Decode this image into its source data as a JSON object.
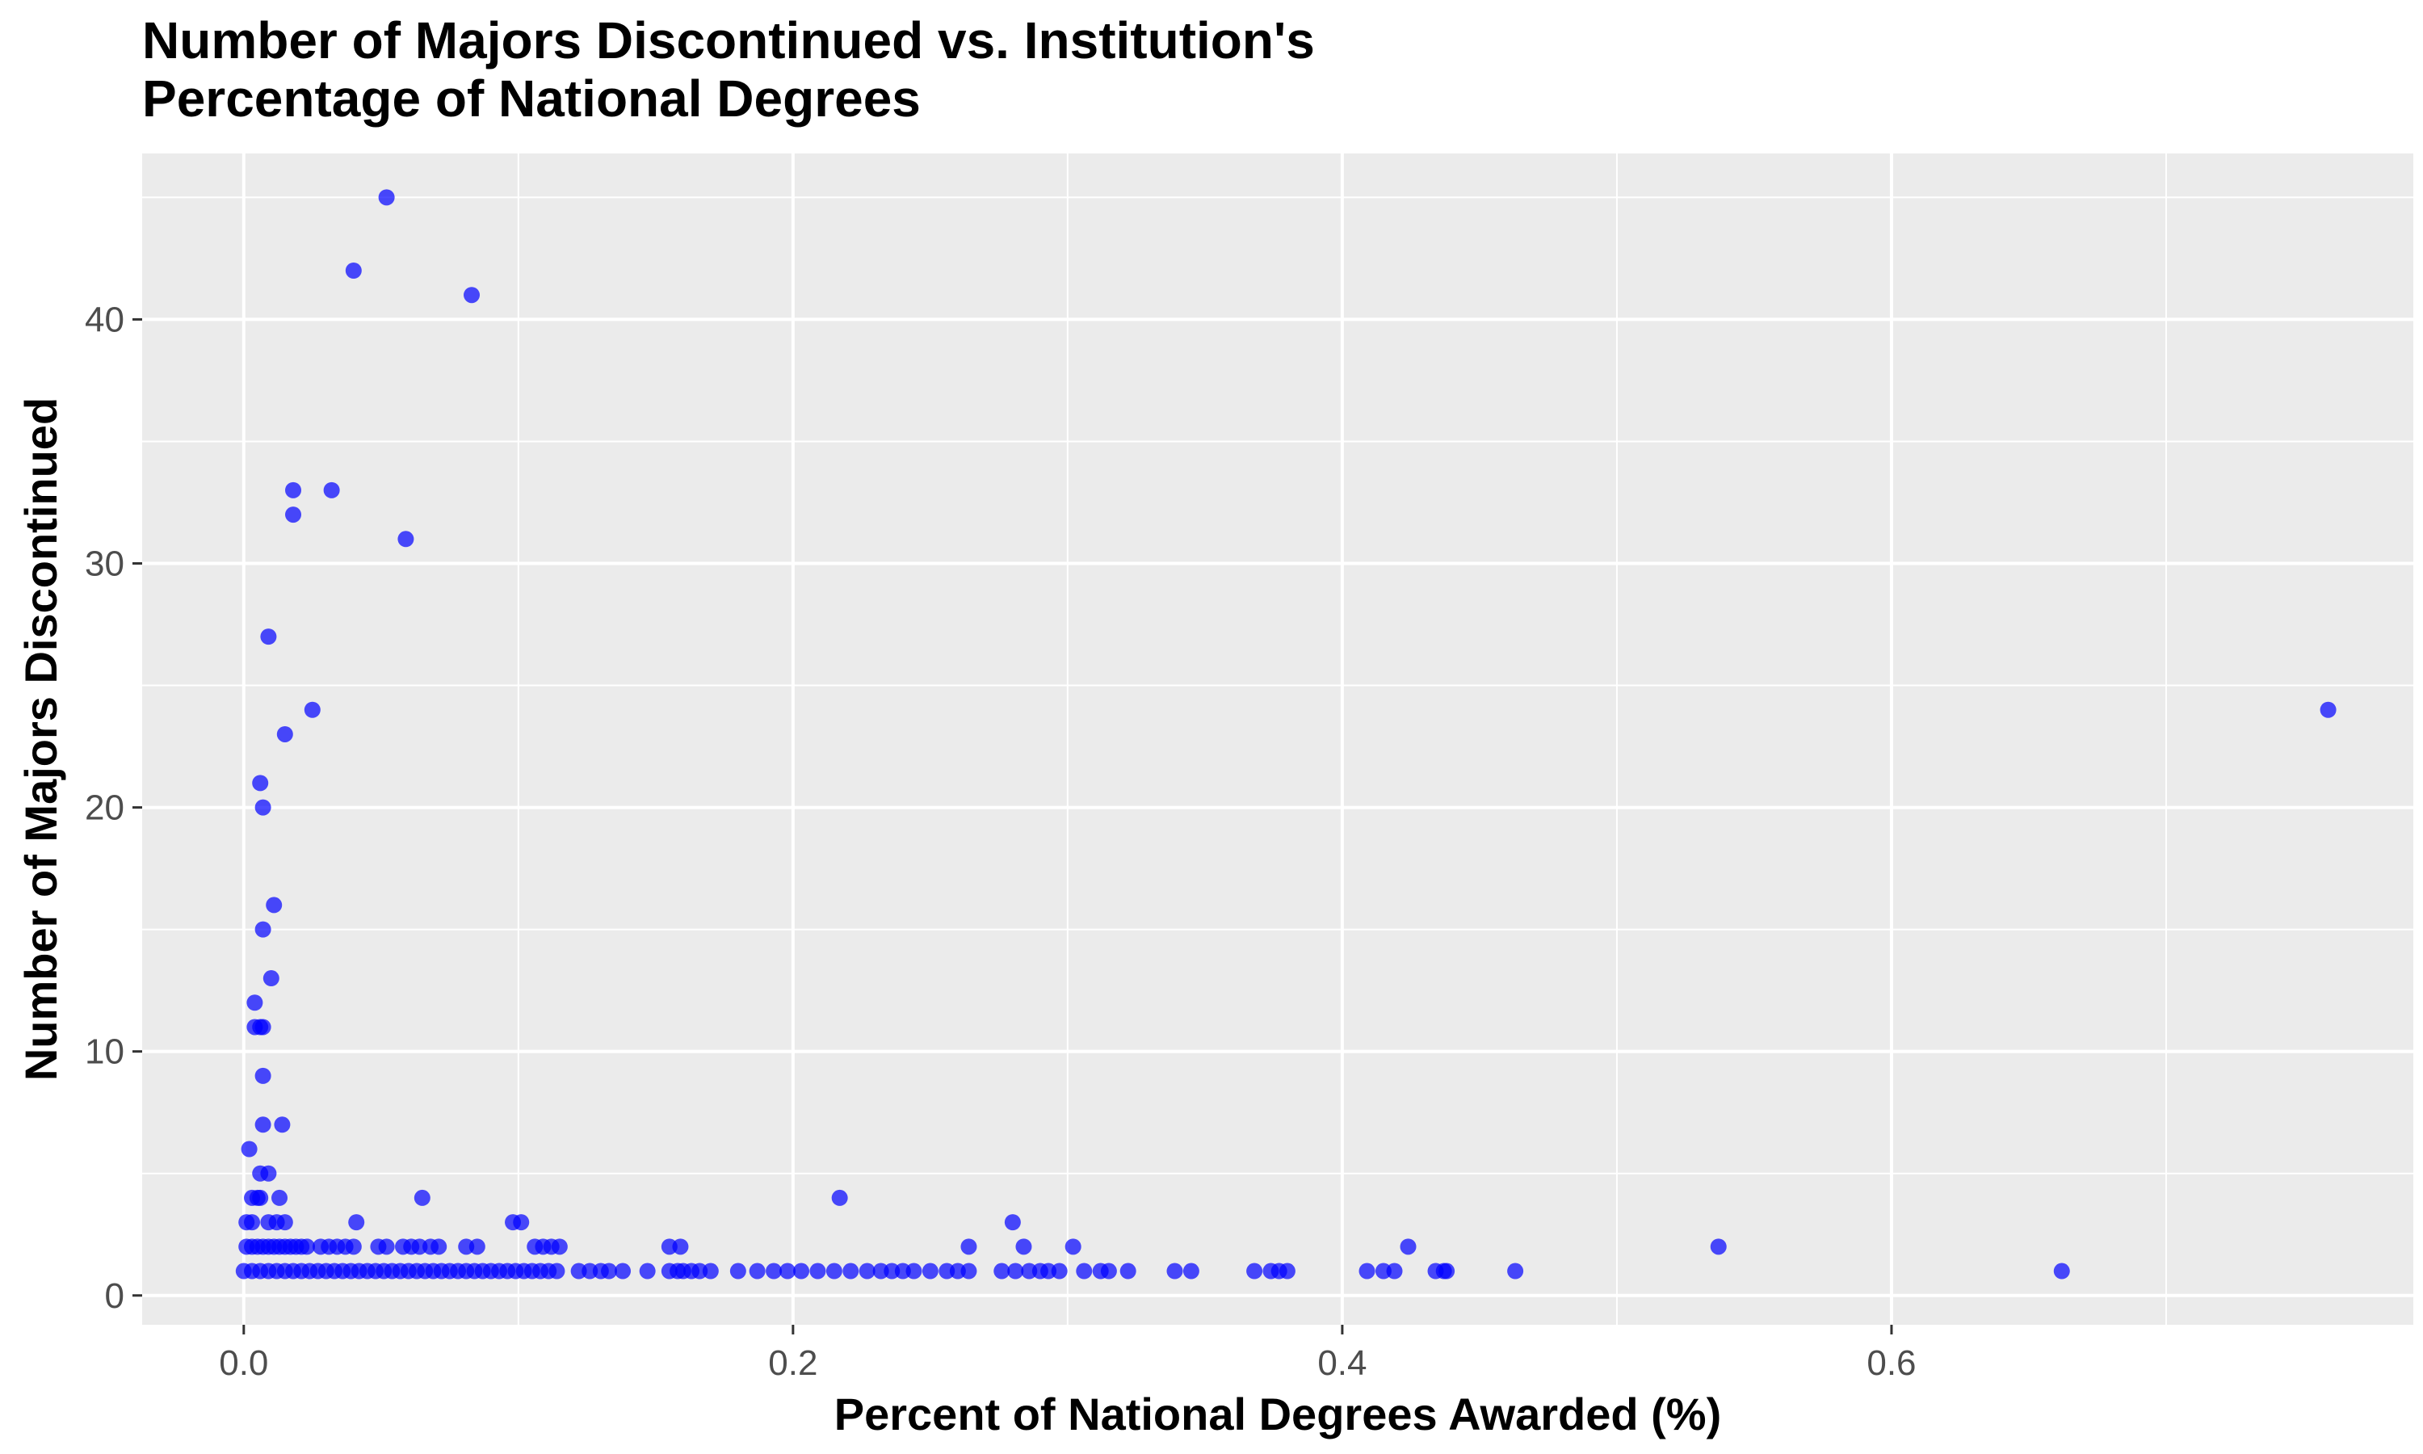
{
  "chart_data": {
    "type": "scatter",
    "title_lines": [
      "Number of Majors Discontinued vs. Institution's",
      "Percentage of National Degrees"
    ],
    "xlabel": "Percent of National Degrees Awarded (%)",
    "ylabel": "Number of Majors Discontinued",
    "xlim": [
      -0.037,
      0.79
    ],
    "ylim": [
      -1.2,
      46.8
    ],
    "x_ticks": [
      0.0,
      0.2,
      0.4,
      0.6
    ],
    "x_tick_labels": [
      "0.0",
      "0.2",
      "0.4",
      "0.6"
    ],
    "y_ticks": [
      0,
      10,
      20,
      30,
      40
    ],
    "y_tick_labels": [
      "0",
      "10",
      "20",
      "30",
      "40"
    ],
    "grid": true,
    "point_color": "#0000ff",
    "panel_color": "#ebebeb",
    "points": [
      [
        0.052,
        45
      ],
      [
        0.04,
        42
      ],
      [
        0.083,
        41
      ],
      [
        0.018,
        33
      ],
      [
        0.032,
        33
      ],
      [
        0.018,
        32
      ],
      [
        0.059,
        31
      ],
      [
        0.009,
        27
      ],
      [
        0.025,
        24
      ],
      [
        0.759,
        24
      ],
      [
        0.015,
        23
      ],
      [
        0.006,
        21
      ],
      [
        0.007,
        20
      ],
      [
        0.011,
        16
      ],
      [
        0.007,
        15
      ],
      [
        0.01,
        13
      ],
      [
        0.004,
        12
      ],
      [
        0.004,
        11
      ],
      [
        0.006,
        11
      ],
      [
        0.007,
        11
      ],
      [
        0.007,
        9
      ],
      [
        0.007,
        7
      ],
      [
        0.014,
        7
      ],
      [
        0.002,
        6
      ],
      [
        0.006,
        5
      ],
      [
        0.009,
        5
      ],
      [
        0.003,
        4
      ],
      [
        0.005,
        4
      ],
      [
        0.006,
        4
      ],
      [
        0.013,
        4
      ],
      [
        0.065,
        4
      ],
      [
        0.217,
        4
      ],
      [
        0.001,
        3
      ],
      [
        0.003,
        3
      ],
      [
        0.009,
        3
      ],
      [
        0.012,
        3
      ],
      [
        0.015,
        3
      ],
      [
        0.041,
        3
      ],
      [
        0.098,
        3
      ],
      [
        0.101,
        3
      ],
      [
        0.28,
        3
      ],
      [
        0.001,
        2
      ],
      [
        0.003,
        2
      ],
      [
        0.005,
        2
      ],
      [
        0.007,
        2
      ],
      [
        0.009,
        2
      ],
      [
        0.011,
        2
      ],
      [
        0.013,
        2
      ],
      [
        0.015,
        2
      ],
      [
        0.017,
        2
      ],
      [
        0.019,
        2
      ],
      [
        0.021,
        2
      ],
      [
        0.023,
        2
      ],
      [
        0.028,
        2
      ],
      [
        0.031,
        2
      ],
      [
        0.034,
        2
      ],
      [
        0.037,
        2
      ],
      [
        0.04,
        2
      ],
      [
        0.049,
        2
      ],
      [
        0.052,
        2
      ],
      [
        0.058,
        2
      ],
      [
        0.061,
        2
      ],
      [
        0.064,
        2
      ],
      [
        0.068,
        2
      ],
      [
        0.071,
        2
      ],
      [
        0.081,
        2
      ],
      [
        0.085,
        2
      ],
      [
        0.106,
        2
      ],
      [
        0.109,
        2
      ],
      [
        0.112,
        2
      ],
      [
        0.115,
        2
      ],
      [
        0.155,
        2
      ],
      [
        0.159,
        2
      ],
      [
        0.264,
        2
      ],
      [
        0.284,
        2
      ],
      [
        0.302,
        2
      ],
      [
        0.424,
        2
      ],
      [
        0.537,
        2
      ],
      [
        0.0,
        1
      ],
      [
        0.003,
        1
      ],
      [
        0.006,
        1
      ],
      [
        0.009,
        1
      ],
      [
        0.012,
        1
      ],
      [
        0.015,
        1
      ],
      [
        0.018,
        1
      ],
      [
        0.021,
        1
      ],
      [
        0.024,
        1
      ],
      [
        0.027,
        1
      ],
      [
        0.03,
        1
      ],
      [
        0.033,
        1
      ],
      [
        0.036,
        1
      ],
      [
        0.039,
        1
      ],
      [
        0.042,
        1
      ],
      [
        0.045,
        1
      ],
      [
        0.048,
        1
      ],
      [
        0.051,
        1
      ],
      [
        0.054,
        1
      ],
      [
        0.057,
        1
      ],
      [
        0.06,
        1
      ],
      [
        0.063,
        1
      ],
      [
        0.066,
        1
      ],
      [
        0.069,
        1
      ],
      [
        0.072,
        1
      ],
      [
        0.075,
        1
      ],
      [
        0.078,
        1
      ],
      [
        0.081,
        1
      ],
      [
        0.084,
        1
      ],
      [
        0.087,
        1
      ],
      [
        0.09,
        1
      ],
      [
        0.093,
        1
      ],
      [
        0.096,
        1
      ],
      [
        0.099,
        1
      ],
      [
        0.102,
        1
      ],
      [
        0.105,
        1
      ],
      [
        0.108,
        1
      ],
      [
        0.111,
        1
      ],
      [
        0.114,
        1
      ],
      [
        0.122,
        1
      ],
      [
        0.126,
        1
      ],
      [
        0.13,
        1
      ],
      [
        0.133,
        1
      ],
      [
        0.138,
        1
      ],
      [
        0.147,
        1
      ],
      [
        0.155,
        1
      ],
      [
        0.158,
        1
      ],
      [
        0.16,
        1
      ],
      [
        0.163,
        1
      ],
      [
        0.166,
        1
      ],
      [
        0.17,
        1
      ],
      [
        0.18,
        1
      ],
      [
        0.187,
        1
      ],
      [
        0.193,
        1
      ],
      [
        0.198,
        1
      ],
      [
        0.203,
        1
      ],
      [
        0.209,
        1
      ],
      [
        0.215,
        1
      ],
      [
        0.221,
        1
      ],
      [
        0.227,
        1
      ],
      [
        0.232,
        1
      ],
      [
        0.236,
        1
      ],
      [
        0.24,
        1
      ],
      [
        0.244,
        1
      ],
      [
        0.25,
        1
      ],
      [
        0.256,
        1
      ],
      [
        0.26,
        1
      ],
      [
        0.264,
        1
      ],
      [
        0.276,
        1
      ],
      [
        0.281,
        1
      ],
      [
        0.286,
        1
      ],
      [
        0.29,
        1
      ],
      [
        0.293,
        1
      ],
      [
        0.297,
        1
      ],
      [
        0.306,
        1
      ],
      [
        0.312,
        1
      ],
      [
        0.315,
        1
      ],
      [
        0.322,
        1
      ],
      [
        0.339,
        1
      ],
      [
        0.345,
        1
      ],
      [
        0.368,
        1
      ],
      [
        0.374,
        1
      ],
      [
        0.377,
        1
      ],
      [
        0.38,
        1
      ],
      [
        0.409,
        1
      ],
      [
        0.415,
        1
      ],
      [
        0.419,
        1
      ],
      [
        0.434,
        1
      ],
      [
        0.437,
        1
      ],
      [
        0.438,
        1
      ],
      [
        0.463,
        1
      ],
      [
        0.662,
        1
      ]
    ]
  }
}
